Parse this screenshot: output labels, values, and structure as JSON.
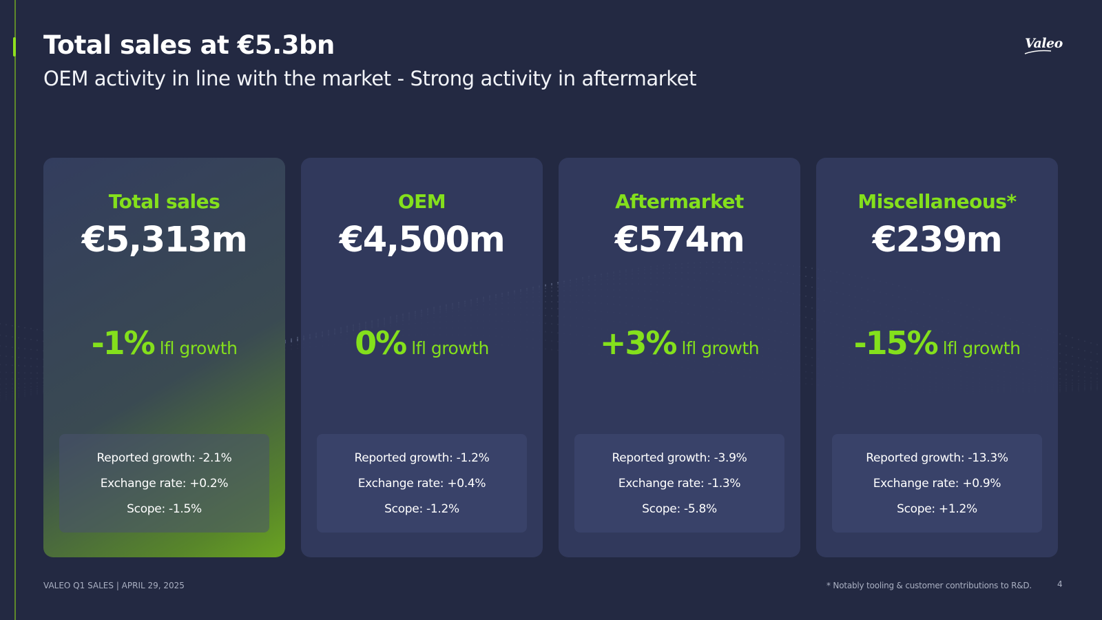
{
  "header": {
    "title": "Total sales at €5.3bn",
    "subtitle": "OEM activity in line with the market - Strong activity in aftermarket",
    "logo": "Valeo"
  },
  "colors": {
    "background": "#232942",
    "accent_green": "#84e01c",
    "card": "#343d62"
  },
  "cards": [
    {
      "label": "Total sales",
      "value": "€5,313m",
      "growth_pct": "-1%",
      "growth_label": "lfl growth",
      "details": [
        "Reported growth: -2.1%",
        "Exchange rate: +0.2%",
        "Scope: -1.5%"
      ]
    },
    {
      "label": "OEM",
      "value": "€4,500m",
      "growth_pct": "0%",
      "growth_label": "lfl growth",
      "details": [
        "Reported growth: -1.2%",
        "Exchange rate: +0.4%",
        "Scope: -1.2%"
      ]
    },
    {
      "label": "Aftermarket",
      "value": "€574m",
      "growth_pct": "+3%",
      "growth_label": "lfl growth",
      "details": [
        "Reported growth: -3.9%",
        "Exchange rate: -1.3%",
        "Scope: -5.8%"
      ]
    },
    {
      "label": "Miscellaneous*",
      "value": "€239m",
      "growth_pct": "-15%",
      "growth_label": "lfl growth",
      "details": [
        "Reported growth: -13.3%",
        "Exchange rate: +0.9%",
        "Scope: +1.2%"
      ]
    }
  ],
  "footer": {
    "left": "VALEO Q1 SALES | APRIL 29, 2025",
    "footnote": "* Notably tooling & customer contributions to R&D.",
    "page_number": "4"
  }
}
